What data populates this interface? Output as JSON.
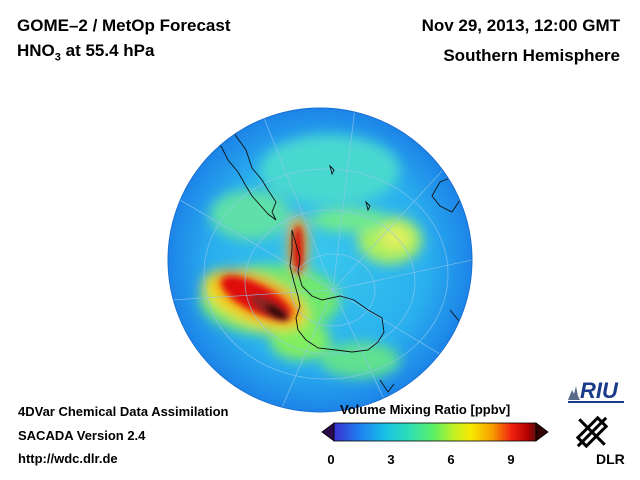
{
  "title_left": {
    "line1": "GOME–2 / MetOp Forecast",
    "line2_prefix": "HNO",
    "line2_sub": "3",
    "line2_suffix": " at 55.4 hPa"
  },
  "title_right": {
    "date": "Nov 29, 2013, 12:00 GMT",
    "region": "Southern Hemisphere"
  },
  "footer_left": {
    "line1": "4DVar Chemical Data Assimilation",
    "line2": "SACADA Version 2.4",
    "line3": "http://wdc.dlr.de"
  },
  "colorbar": {
    "title": "Volume Mixing Ratio [ppbv]",
    "ticks": [
      "0",
      "3",
      "6",
      "9"
    ],
    "colors": [
      "#2a0a4a",
      "#3a2fd0",
      "#1f7cf0",
      "#18c0e8",
      "#30e0b0",
      "#60f060",
      "#c8f020",
      "#f8e800",
      "#f8a000",
      "#f02010",
      "#b00000",
      "#300000"
    ]
  },
  "logos": {
    "riu": "RIU",
    "dlr": "DLR"
  },
  "map_colors": {
    "ocean_base": "#1ea6f0",
    "land_outline": "#101010",
    "grid": "#8fc8f0"
  }
}
